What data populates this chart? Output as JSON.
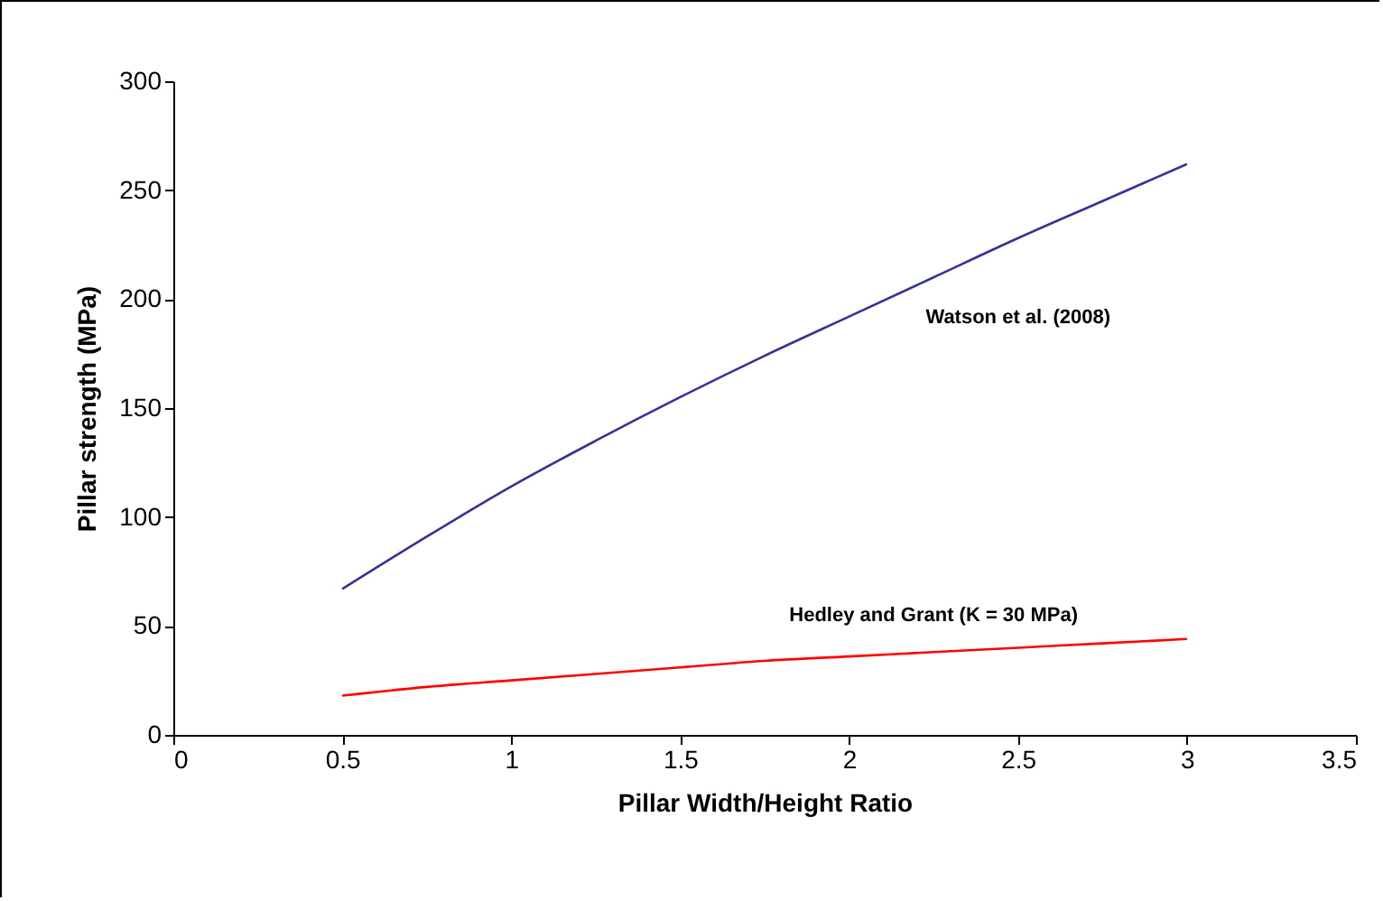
{
  "chart_data": {
    "type": "line",
    "xlabel": "Pillar Width/Height Ratio",
    "ylabel": "Pillar strength (MPa)",
    "x": [
      0.5,
      0.75,
      1,
      1.25,
      1.5,
      1.75,
      2,
      2.25,
      2.5,
      2.75,
      3
    ],
    "series": [
      {
        "name": "Watson et al. (2008)",
        "color": "#333399",
        "values": [
          67,
          91,
          114,
          135,
          155,
          174,
          192,
          210,
          228,
          245,
          262
        ]
      },
      {
        "name": "Hedley and Grant (K = 30 MPa)",
        "color": "#ff0000",
        "values": [
          18,
          22,
          25,
          28,
          31,
          34,
          36,
          38,
          40,
          42,
          44
        ]
      }
    ],
    "xlim": [
      0,
      3.5
    ],
    "xticks": [
      0,
      0.5,
      1,
      1.5,
      2,
      2.5,
      3,
      3.5
    ],
    "ylim": [
      0,
      300
    ],
    "yticks": [
      0,
      50,
      100,
      150,
      200,
      250,
      300
    ],
    "grid": false,
    "legend": false,
    "marker": "none",
    "line_style": "solid"
  }
}
